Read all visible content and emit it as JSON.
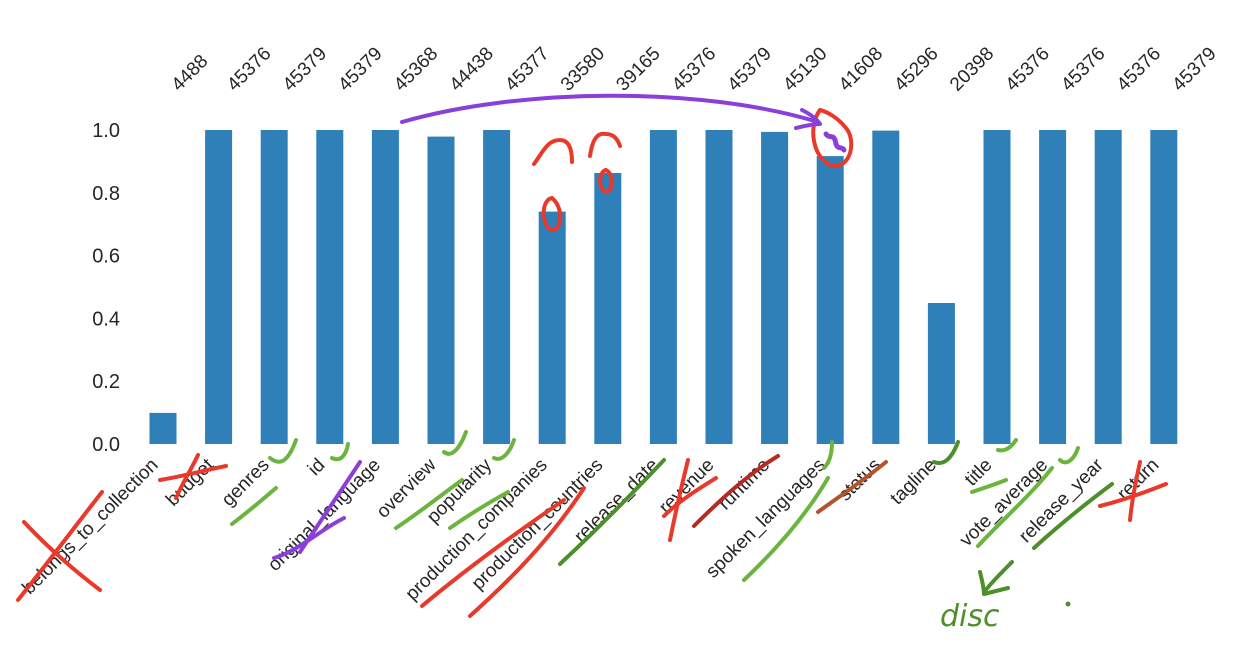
{
  "chart_data": {
    "type": "bar",
    "title": "",
    "xlabel": "",
    "ylabel": "",
    "ylim": [
      0,
      1.0
    ],
    "yticks": [
      "0.0",
      "0.2",
      "0.4",
      "0.6",
      "0.8",
      "1.0"
    ],
    "grid": false,
    "bar_color": "#2f7fb8",
    "categories": [
      "belongs_to_collection",
      "budget",
      "genres",
      "id",
      "original_language",
      "overview",
      "popularity",
      "production_companies",
      "production_countries",
      "release_date",
      "revenue",
      "runtime",
      "spoken_languages",
      "status",
      "tagline",
      "title",
      "vote_average",
      "release_year",
      "return"
    ],
    "values": [
      0.099,
      1.0,
      1.0,
      1.0,
      1.0,
      0.979,
      1.0,
      0.74,
      0.863,
      1.0,
      1.0,
      0.994,
      0.917,
      0.998,
      0.449,
      1.0,
      1.0,
      1.0,
      1.0
    ],
    "top_labels": [
      "4488",
      "45376",
      "45379",
      "45379",
      "45368",
      "44438",
      "45377",
      "33580",
      "39165",
      "45376",
      "45379",
      "45130",
      "41608",
      "45296",
      "20398",
      "45376",
      "45376",
      "45376",
      "45379"
    ]
  },
  "annotations": {
    "handwritten_text": "disc",
    "pen_colors": {
      "red": "#e8392a",
      "green": "#6db33f",
      "dark_green": "#4e8f2c",
      "purple": "#8a3fd8",
      "brown": "#b5542a"
    }
  }
}
